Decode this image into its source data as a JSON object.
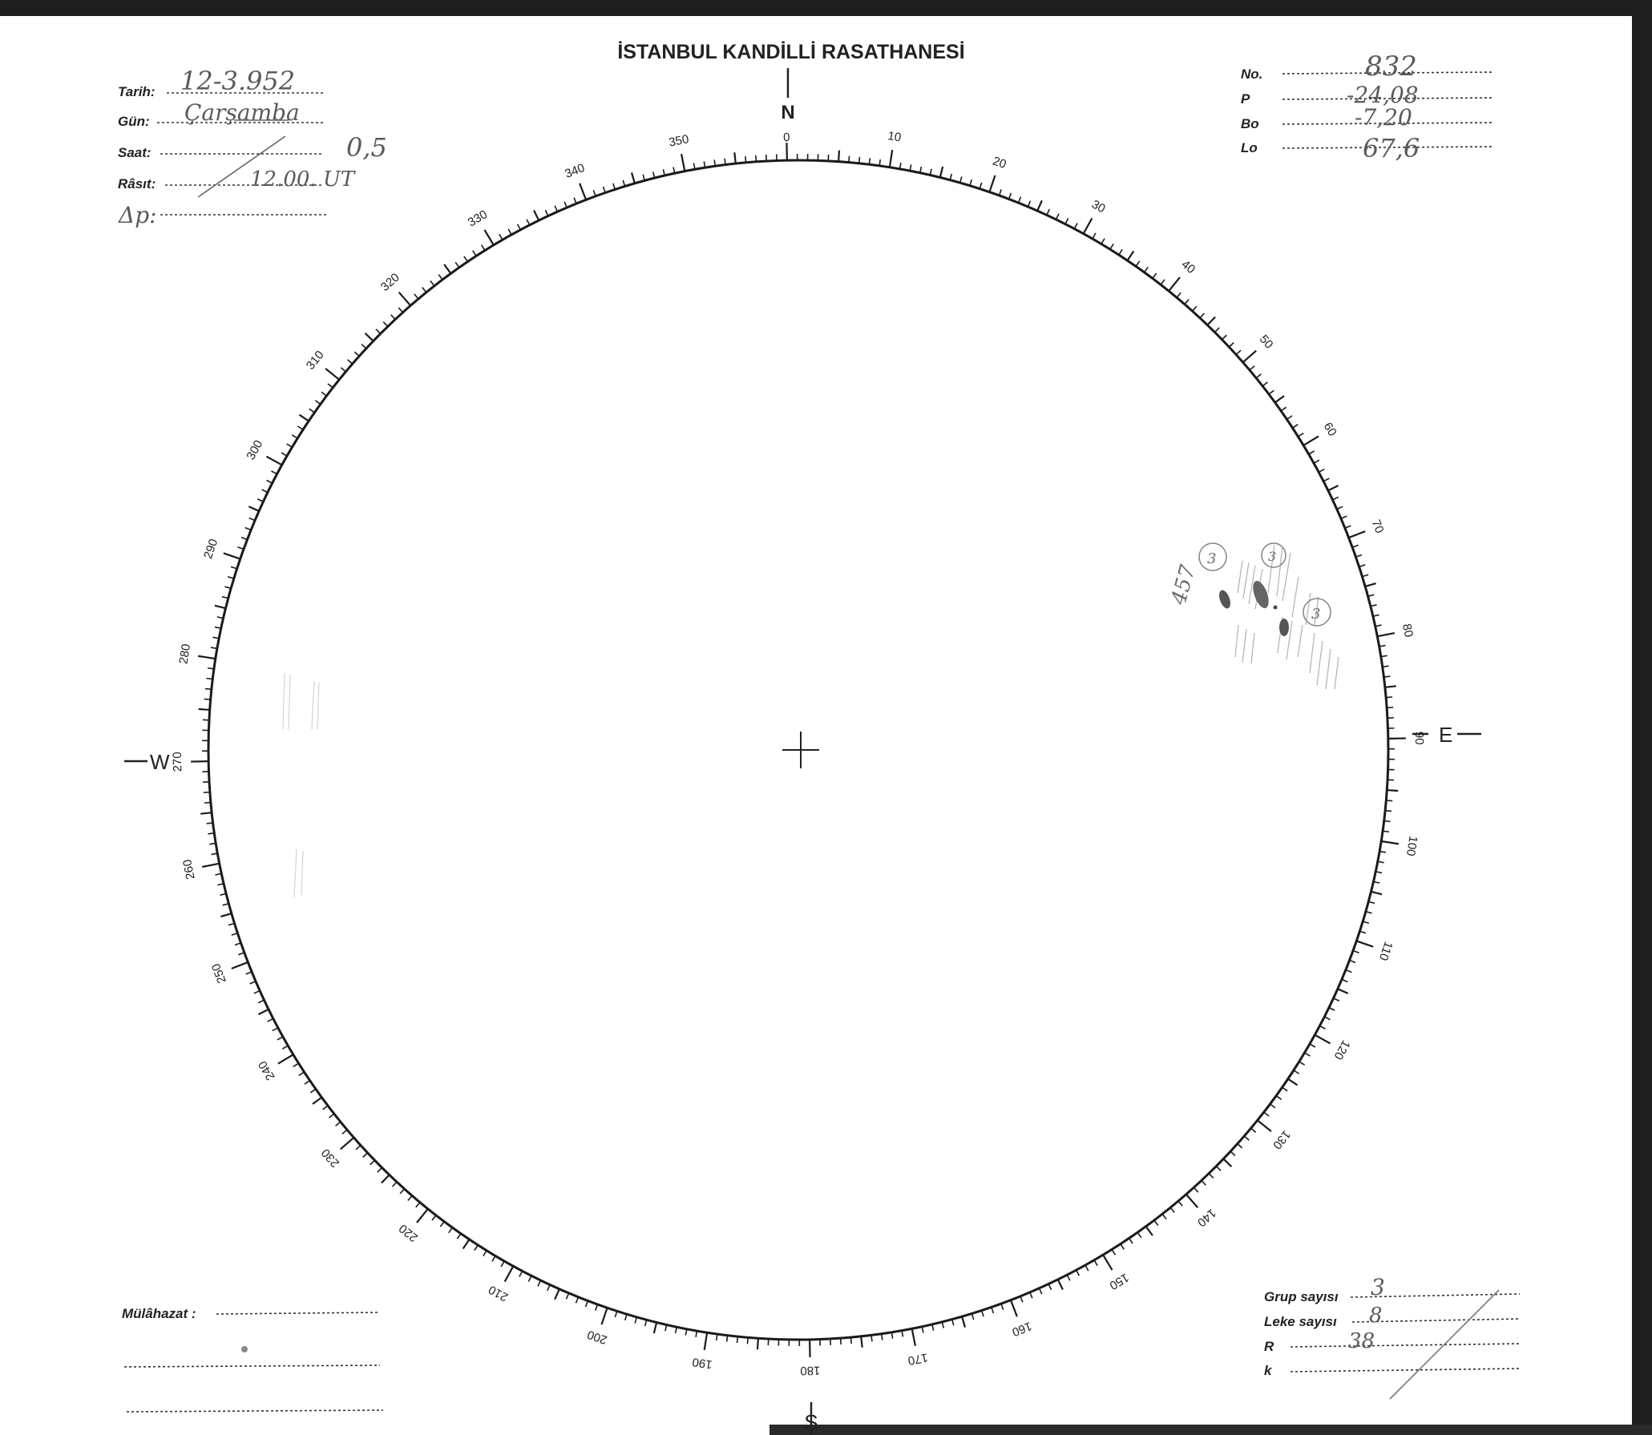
{
  "title": "İSTANBUL KANDİLLİ RASATHANESİ",
  "header_left": {
    "tarih_label": "Tarih:",
    "tarih_value": "12-3.952",
    "gun_label": "Gün:",
    "gun_value": "Çarşamba",
    "saat_label": "Saat:",
    "saat_value": "0,5",
    "rasit_label": "Râsıt:",
    "rasit_value": "12.00. UT",
    "delta_p_label": "Δp:"
  },
  "header_right": {
    "no_label": "No.",
    "no_value": "832",
    "p_label": "P",
    "p_value": "-24,08",
    "b0_label": "Bo",
    "b0_value": "-7,20",
    "l0_label": "Lo",
    "l0_value": "67,6"
  },
  "compass": {
    "north": "N",
    "south": "S",
    "east": "E",
    "west": "W"
  },
  "degree_labels": [
    "0",
    "10",
    "20",
    "30",
    "40",
    "50",
    "60",
    "70",
    "80",
    "90",
    "100",
    "110",
    "120",
    "130",
    "140",
    "150",
    "160",
    "170",
    "180",
    "190",
    "200",
    "210",
    "220",
    "230",
    "240",
    "250",
    "260",
    "270",
    "280",
    "290",
    "300",
    "310",
    "320",
    "330",
    "340",
    "350"
  ],
  "sunspot_annotations": {
    "group_number": "457",
    "circle_labels": [
      "3",
      "3",
      "3"
    ]
  },
  "footer_left": {
    "mulahazat_label": "Mülâhazat :"
  },
  "footer_right": {
    "grup_label": "Grup sayısı",
    "grup_value": "3",
    "leke_label": "Leke sayısı",
    "leke_value": "8",
    "r_label": "R",
    "r_value": "38",
    "k_label": "k"
  },
  "colors": {
    "ink": "#222222",
    "pencil": "#5a5a5a",
    "scan_border": "#1a1a1a"
  }
}
